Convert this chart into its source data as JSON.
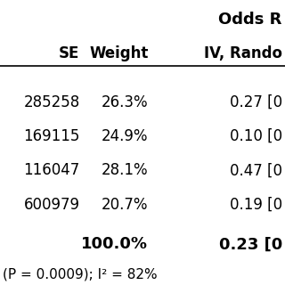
{
  "title_line1": "Odds R",
  "col_headers": [
    "SE",
    "Weight",
    "IV, Rando"
  ],
  "rows": [
    {
      "se": "285258",
      "weight": "26.3%",
      "or": "0.27 [0"
    },
    {
      "se": "169115",
      "weight": "24.9%",
      "or": "0.10 [0"
    },
    {
      "se": "116047",
      "weight": "28.1%",
      "or": "0.47 [0"
    },
    {
      "se": "600979",
      "weight": "20.7%",
      "or": "0.19 [0"
    }
  ],
  "total_weight": "100.0%",
  "total_or": "0.23 [0",
  "footer": "(P = 0.0009); I² = 82%",
  "bg_color": "#ffffff",
  "text_color": "#000000"
}
